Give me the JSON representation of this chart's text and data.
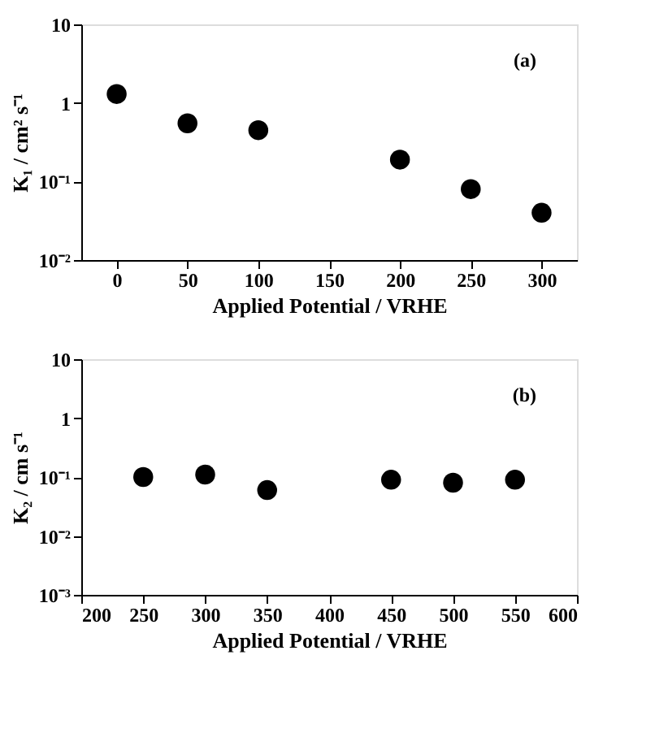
{
  "chart_data": [
    {
      "type": "scatter",
      "xlabel": "Applied Potential / VRHE",
      "ylabel": "K₁ / cm² s⁻¹",
      "annotations": [
        "(a)"
      ],
      "x": [
        0,
        50,
        100,
        200,
        250,
        300
      ],
      "series": [
        {
          "color": "#000000",
          "values": [
            1.3,
            0.55,
            0.45,
            0.19,
            0.08,
            0.04
          ]
        }
      ],
      "xlim": [
        -25,
        325
      ],
      "xticks": [
        0,
        50,
        100,
        150,
        200,
        250,
        300
      ],
      "ylim": [
        0.01,
        10
      ],
      "yticks": [
        {
          "value": 0.01,
          "label": "10⁻²"
        },
        {
          "value": 0.1,
          "label": "10⁻¹"
        },
        1,
        10
      ],
      "log": "y",
      "grid": false,
      "marker": "circle"
    },
    {
      "type": "scatter",
      "xlabel": "Applied Potential / VRHE",
      "ylabel": "K₂ / cm s⁻¹",
      "annotations": [
        "(b)"
      ],
      "x": [
        250,
        300,
        350,
        450,
        500,
        550
      ],
      "series": [
        {
          "color": "#000000",
          "values": [
            0.1,
            0.11,
            0.06,
            0.09,
            0.08,
            0.09
          ]
        }
      ],
      "xlim": [
        200,
        600
      ],
      "xticks": [
        200,
        250,
        300,
        350,
        400,
        450,
        500,
        550,
        600
      ],
      "ylim": [
        0.001,
        10
      ],
      "yticks": [
        {
          "value": 0.001,
          "label": "10⁻³"
        },
        {
          "value": 0.01,
          "label": "10⁻²"
        },
        {
          "value": 0.1,
          "label": "10⁻¹"
        },
        1,
        10
      ],
      "log": "y",
      "grid": false,
      "marker": "circle"
    }
  ]
}
